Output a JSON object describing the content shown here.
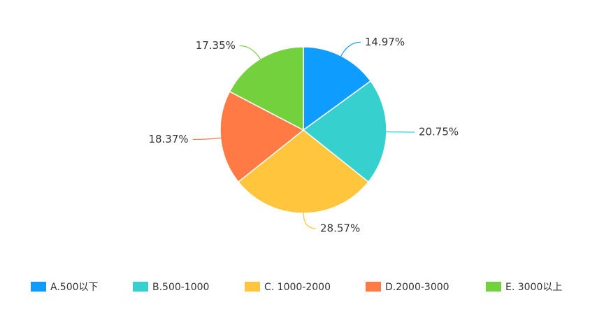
{
  "chart_data": {
    "type": "pie",
    "categories": [
      "A.500以下",
      "B.500-1000",
      "C. 1000-2000",
      "D.2000-3000",
      "E. 3000以上"
    ],
    "values": [
      14.97,
      20.75,
      28.57,
      18.37,
      17.35
    ],
    "value_labels": [
      "14.97%",
      "20.75%",
      "28.57%",
      "18.37%",
      "17.35%"
    ],
    "colors": [
      "#0e9cff",
      "#36d1cf",
      "#ffc53d",
      "#ff7a45",
      "#73d13d"
    ]
  }
}
